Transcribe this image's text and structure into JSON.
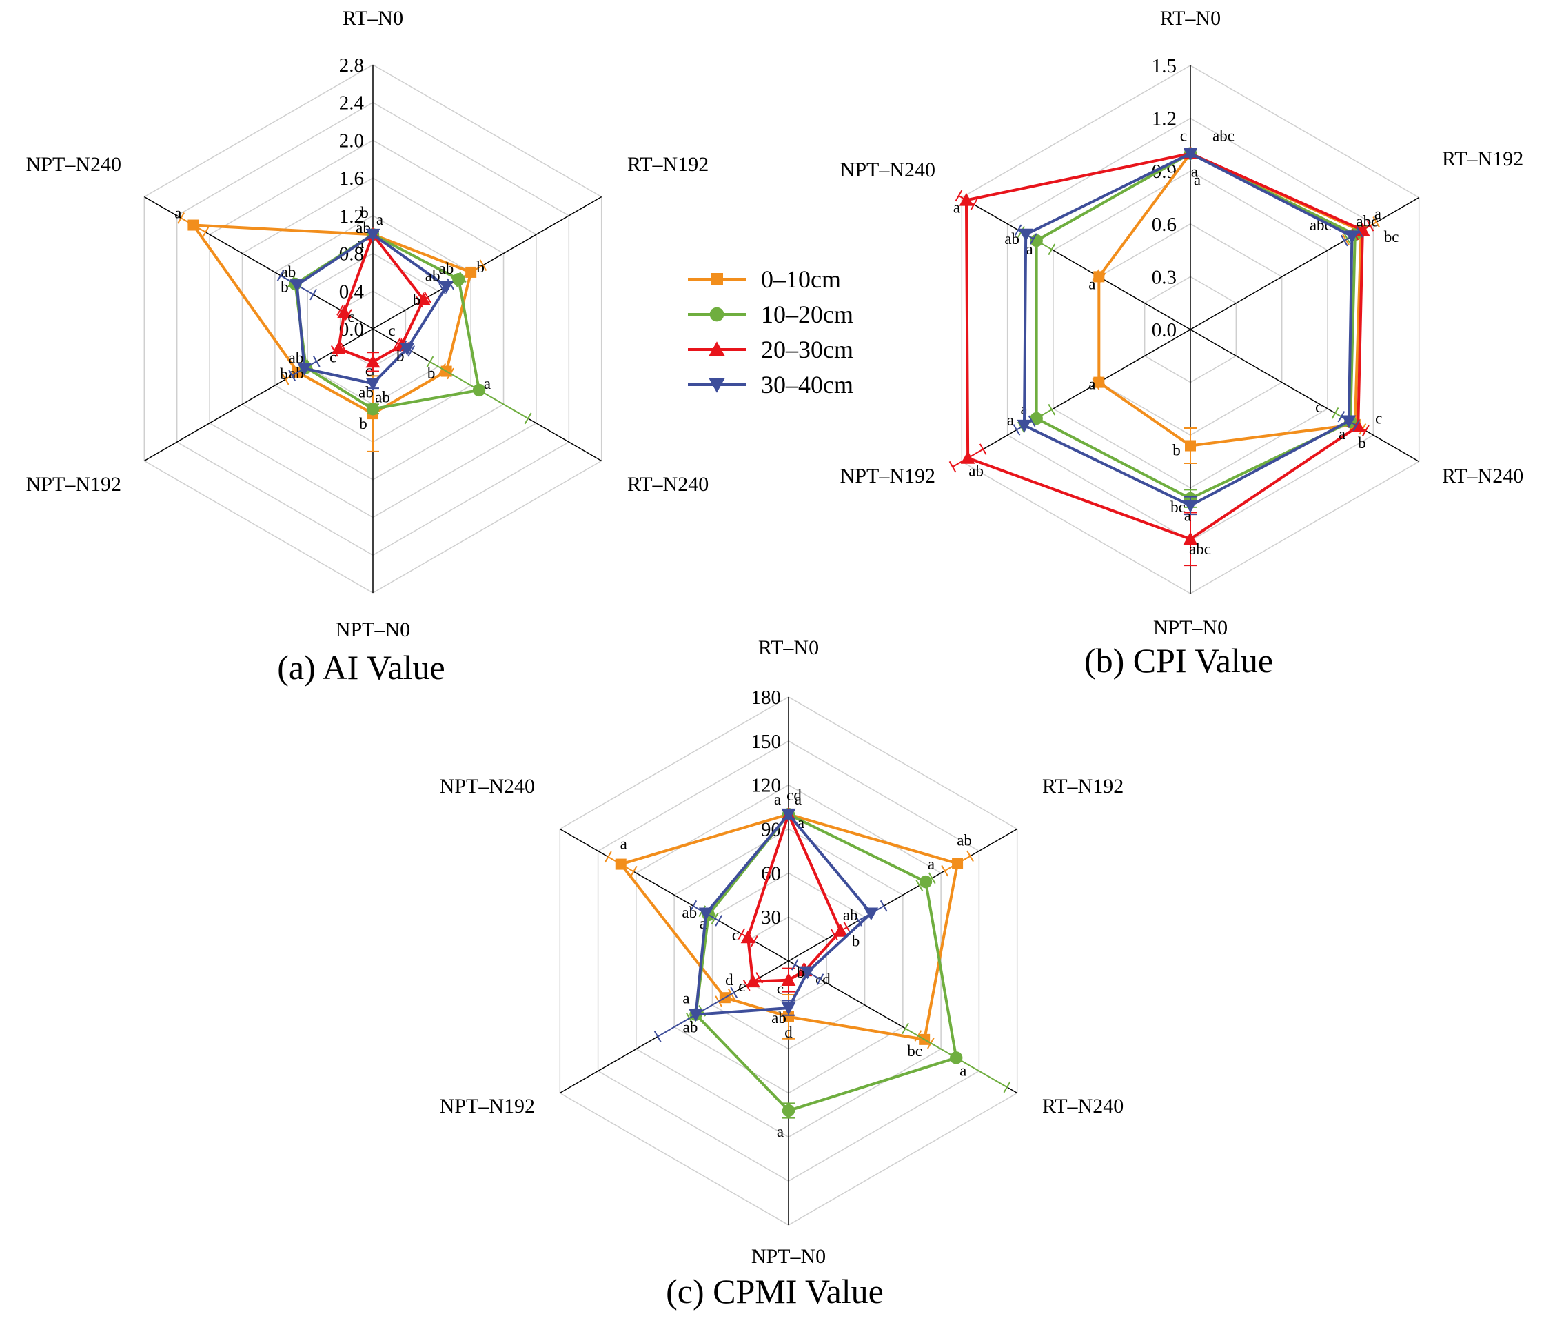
{
  "chart_data": [
    {
      "type": "radar",
      "title": "(a)  AI Value",
      "categories": [
        "RT–N0",
        "RT–N192",
        "RT–N240",
        "NPT–N0",
        "NPT–N192",
        "NPT–N240"
      ],
      "ticks": [
        "0.0",
        "0.4",
        "0.8",
        "1.2",
        "1.6",
        "2.0",
        "2.4",
        "2.8"
      ],
      "rlim": [
        0,
        2.8
      ],
      "series": [
        {
          "name": "0–10cm",
          "values": [
            1.0,
            1.2,
            0.9,
            0.9,
            0.92,
            2.2
          ],
          "errors": [
            0.05,
            0.15,
            0.05,
            0.4,
            0.15,
            0.15
          ],
          "labels": [
            "a",
            "b",
            "b",
            "b",
            "b",
            "a"
          ]
        },
        {
          "name": "10–20cm",
          "values": [
            1.0,
            1.05,
            1.3,
            0.85,
            0.82,
            0.95
          ],
          "errors": [
            0.05,
            0.05,
            0.6,
            0.05,
            0.05,
            0.05
          ],
          "labels": [
            "ab",
            "ab",
            "a",
            "ab",
            "ab",
            "ab"
          ]
        },
        {
          "name": "20–30cm",
          "values": [
            1.0,
            0.62,
            0.35,
            0.35,
            0.42,
            0.35
          ],
          "errors": [
            0.03,
            0.05,
            0.05,
            0.1,
            0.05,
            0.05
          ],
          "labels": [
            "a",
            "b",
            "c",
            "c",
            "c",
            "c"
          ]
        },
        {
          "name": "30–40cm",
          "values": [
            1.0,
            0.9,
            0.42,
            0.58,
            0.84,
            0.93
          ],
          "errors": [
            0.03,
            0.05,
            0.05,
            0.05,
            0.15,
            0.2
          ],
          "labels": [
            "b",
            "ab",
            "b",
            "ab",
            "ab",
            "b"
          ]
        }
      ]
    },
    {
      "type": "radar",
      "title": "(b) CPI Value",
      "categories": [
        "RT–N0",
        "RT–N192",
        "RT–N240",
        "NPT–N0",
        "NPT–N192",
        "NPT–N240"
      ],
      "ticks": [
        "0.0",
        "0.3",
        "0.6",
        "0.9",
        "1.2",
        "1.5"
      ],
      "rlim": [
        0,
        1.5
      ],
      "series": [
        {
          "name": "0–10cm",
          "values": [
            1.0,
            1.12,
            1.08,
            0.66,
            0.6,
            0.6
          ],
          "errors": [
            0.02,
            0.1,
            0.05,
            0.1,
            0.02,
            0.02
          ],
          "labels": [
            "a",
            "bc",
            "b",
            "b",
            "a",
            "a"
          ]
        },
        {
          "name": "10–20cm",
          "values": [
            1.0,
            1.08,
            1.05,
            0.96,
            1.01,
            1.01
          ],
          "errors": [
            0.02,
            0.05,
            0.1,
            0.05,
            0.1,
            0.1
          ],
          "labels": [
            "a",
            "abc",
            "c",
            "bc",
            "a",
            "a"
          ]
        },
        {
          "name": "20–30cm",
          "values": [
            1.0,
            1.13,
            1.1,
            1.19,
            1.46,
            1.47
          ],
          "errors": [
            0.02,
            0.05,
            0.05,
            0.15,
            0.1,
            0.05
          ],
          "labels": [
            "abc",
            "a",
            "c",
            "abc",
            "ab",
            "a"
          ]
        },
        {
          "name": "30–40cm",
          "values": [
            1.0,
            1.06,
            1.04,
            1.0,
            1.09,
            1.08
          ],
          "errors": [
            0.02,
            0.05,
            0.05,
            0.05,
            0.05,
            0.05
          ],
          "labels": [
            "c",
            "abc",
            "a",
            "a",
            "a",
            "ab"
          ]
        }
      ]
    },
    {
      "type": "radar",
      "title": "(c) CPMI Value",
      "categories": [
        "RT–N0",
        "RT–N192",
        "RT–N240",
        "NPT–N0",
        "NPT–N192",
        "NPT–N240"
      ],
      "ticks": [
        "30",
        "60",
        "90",
        "120",
        "150",
        "180"
      ],
      "rlim": [
        0,
        180
      ],
      "series": [
        {
          "name": "0–10cm",
          "values": [
            100,
            133,
            107,
            38,
            50,
            132
          ],
          "errors": [
            3,
            10,
            5,
            15,
            5,
            10
          ],
          "labels": [
            "a",
            "ab",
            "bc",
            "d",
            "d",
            "a"
          ]
        },
        {
          "name": "10–20cm",
          "values": [
            100,
            108,
            132,
            102,
            73,
            63
          ],
          "errors": [
            3,
            5,
            40,
            5,
            5,
            5
          ],
          "labels": [
            "a",
            "a",
            "a",
            "a",
            "ab",
            "a"
          ]
        },
        {
          "name": "20–30cm",
          "values": [
            100,
            41,
            13,
            13,
            28,
            32
          ],
          "errors": [
            3,
            5,
            3,
            8,
            5,
            5
          ],
          "labels": [
            "a",
            "b",
            "cd",
            "c",
            "c",
            "c"
          ]
        },
        {
          "name": "30–40cm",
          "values": [
            100,
            65,
            15,
            32,
            73,
            65
          ],
          "errors": [
            3,
            10,
            10,
            5,
            30,
            10
          ],
          "labels": [
            "cd",
            "ab",
            "b",
            "ab",
            "a",
            "ab"
          ]
        }
      ]
    }
  ],
  "legend": [
    {
      "name": "0–10cm",
      "color": "#F28E1C",
      "marker": "square"
    },
    {
      "name": "10–20cm",
      "color": "#6FAE3F",
      "marker": "circle"
    },
    {
      "name": "20–30cm",
      "color": "#E8141B",
      "marker": "triangle-up"
    },
    {
      "name": "30–40cm",
      "color": "#3E4E9A",
      "marker": "triangle-down"
    }
  ]
}
